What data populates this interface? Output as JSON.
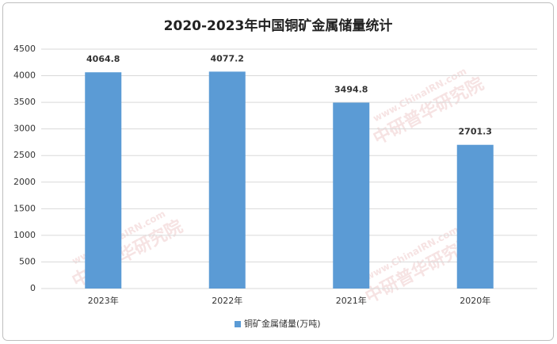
{
  "chart_data": {
    "type": "bar",
    "title": "2020-2023年中国铜矿金属储量统计",
    "categories": [
      "2023年",
      "2022年",
      "2021年",
      "2020年"
    ],
    "series": [
      {
        "name": "铜矿金属储量(万吨)",
        "color": "#5b9bd5",
        "values": [
          4064.8,
          4077.2,
          3494.8,
          2701.3
        ]
      }
    ],
    "ylim": [
      0,
      4500
    ],
    "yticks": [
      0,
      500,
      1000,
      1500,
      2000,
      2500,
      3000,
      3500,
      4000,
      4500
    ],
    "grid": true,
    "legend": "bottom",
    "watermark": [
      "www.ChinaIRN.com",
      "中研普华研究院"
    ]
  }
}
